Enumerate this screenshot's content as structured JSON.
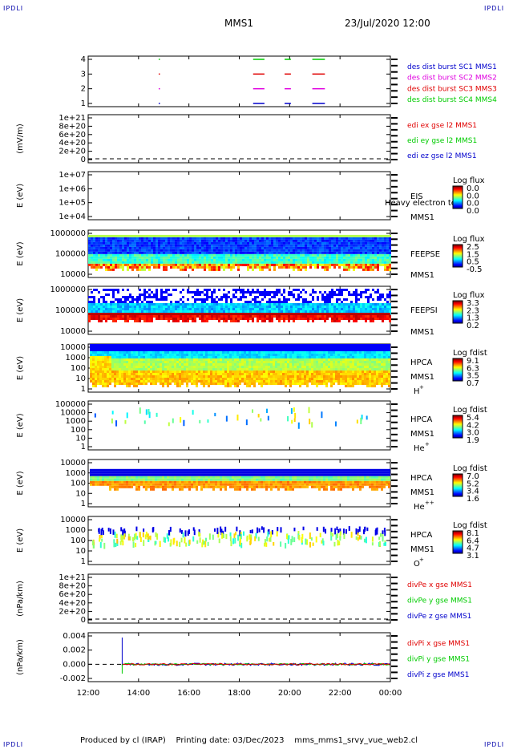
{
  "corner_label": "IPDLI",
  "header": {
    "spacecraft": "MMS1",
    "datetime": "23/Jul/2020 12:00"
  },
  "footer": {
    "text": "Produced by cl (IRAP)    Printing date: 03/Dec/2023    mms_mms1_srvy_vue_web2.cl"
  },
  "colors": {
    "red": "#e00000",
    "magenta": "#e000e0",
    "green": "#00cc00",
    "blue": "#0000cc"
  },
  "chart_data": {
    "type": "heatmap",
    "x_ticks": [
      "12:00",
      "14:00",
      "16:00",
      "18:00",
      "20:00",
      "22:00",
      "00:00"
    ],
    "panels": [
      {
        "id": "burst",
        "kind": "burst",
        "y_ticks": [
          "4",
          "3",
          "2",
          "1"
        ],
        "legend": [
          {
            "text": "des dist burst SC1 MMS1",
            "color": "#0000cc"
          },
          {
            "text": "des dist burst SC2 MMS2",
            "color": "#e000e0"
          },
          {
            "text": "des dist burst SC3 MMS3",
            "color": "#e00000"
          },
          {
            "text": "des dist burst SC4 MMS4",
            "color": "#00cc00"
          }
        ],
        "intervals": [
          [
            14.8,
            14.85
          ],
          [
            18.55,
            19.0
          ],
          [
            19.8,
            20.05
          ],
          [
            20.9,
            21.4
          ]
        ]
      },
      {
        "id": "edi",
        "kind": "line",
        "ylabel": "(mV/m)",
        "y_ticks": [
          "1e+21",
          "8e+20",
          "6e+20",
          "4e+20",
          "2e+20",
          "0"
        ],
        "legend": [
          {
            "text": "edi ex gse l2 MMS1",
            "color": "#e00000"
          },
          {
            "text": "edi ey gse l2 MMS1",
            "color": "#00cc00"
          },
          {
            "text": "edi ez gse l2 MMS1",
            "color": "#0000cc"
          }
        ]
      },
      {
        "id": "eis",
        "kind": "spectrogram",
        "ylabel": "E (eV)",
        "y_ticks": [
          "1e+07",
          "1e+06",
          "1e+05",
          "1e+04"
        ],
        "labels": [
          "EIS",
          "Heavy electron to",
          "MMS1"
        ],
        "cbar": {
          "title": "Log flux",
          "values": [
            "0.0",
            "0.0",
            "0.0",
            "0.0"
          ]
        }
      },
      {
        "id": "feepse",
        "kind": "spectrogram",
        "ylabel": "E (eV)",
        "y_ticks": [
          "1000000",
          "100000",
          "10000"
        ],
        "labels": [
          "FEEPSE",
          "MMS1"
        ],
        "cbar": {
          "title": "Log flux",
          "values": [
            "2.5",
            "1.5",
            "0.5",
            "-0.5"
          ]
        }
      },
      {
        "id": "feepsi",
        "kind": "spectrogram",
        "ylabel": "E (eV)",
        "y_ticks": [
          "1000000",
          "100000",
          "10000"
        ],
        "labels": [
          "FEEPSI",
          "MMS1"
        ],
        "cbar": {
          "title": "Log flux",
          "values": [
            "3.3",
            "2.3",
            "1.3",
            "0.2"
          ]
        }
      },
      {
        "id": "hpca_h",
        "kind": "spectrogram",
        "ylabel": "E (eV)",
        "y_ticks": [
          "10000",
          "1000",
          "100",
          "10",
          "1"
        ],
        "labels": [
          "HPCA",
          "MMS1",
          "H",
          "+"
        ],
        "cbar": {
          "title": "Log fdist",
          "values": [
            "9.1",
            "6.3",
            "3.5",
            "0.7"
          ]
        }
      },
      {
        "id": "hpca_he",
        "kind": "spectrogram",
        "ylabel": "E (eV)",
        "y_ticks": [
          "100000",
          "10000",
          "1000",
          "100",
          "10",
          "1"
        ],
        "labels": [
          "HPCA",
          "MMS1",
          "He",
          "+"
        ],
        "cbar": {
          "title": "Log fdist",
          "values": [
            "5.4",
            "4.2",
            "3.0",
            "1.9"
          ]
        }
      },
      {
        "id": "hpca_he2",
        "kind": "spectrogram",
        "ylabel": "E (eV)",
        "y_ticks": [
          "10000",
          "1000",
          "100",
          "10",
          "1"
        ],
        "labels": [
          "HPCA",
          "MMS1",
          "He",
          "++"
        ],
        "cbar": {
          "title": "Log fdist",
          "values": [
            "7.0",
            "5.2",
            "3.4",
            "1.6"
          ]
        }
      },
      {
        "id": "hpca_o",
        "kind": "spectrogram",
        "ylabel": "E (eV)",
        "y_ticks": [
          "10000",
          "1000",
          "100",
          "10",
          "1"
        ],
        "labels": [
          "HPCA",
          "MMS1",
          "O",
          "+"
        ],
        "cbar": {
          "title": "Log fdist",
          "values": [
            "8.1",
            "6.4",
            "4.7",
            "3.1"
          ]
        }
      },
      {
        "id": "divpe",
        "kind": "line",
        "ylabel": "(nPa/km)",
        "y_ticks": [
          "1e+21",
          "8e+20",
          "6e+20",
          "4e+20",
          "2e+20",
          "0"
        ],
        "legend": [
          {
            "text": "divPe x gse MMS1",
            "color": "#e00000"
          },
          {
            "text": "divPe y gse MMS1",
            "color": "#00cc00"
          },
          {
            "text": "divPe z gse MMS1",
            "color": "#0000cc"
          }
        ]
      },
      {
        "id": "divpi",
        "kind": "line",
        "ylabel": "(nPa/km)",
        "y_ticks": [
          "0.004",
          "0.002",
          "0.000",
          "-0.002"
        ],
        "legend": [
          {
            "text": "divPi x gse MMS1",
            "color": "#e00000"
          },
          {
            "text": "divPi y gse MMS1",
            "color": "#00cc00"
          },
          {
            "text": "divPi z gse MMS1",
            "color": "#0000cc"
          }
        ]
      }
    ]
  }
}
